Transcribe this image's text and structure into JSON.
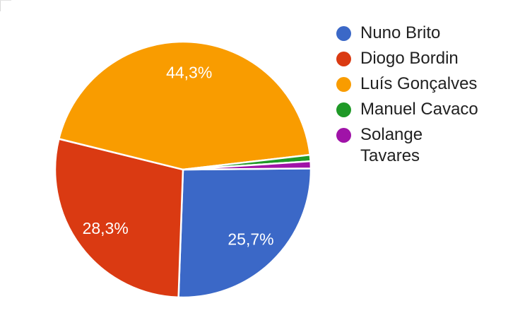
{
  "chart_data": {
    "type": "pie",
    "title": "",
    "legend_position": "right",
    "background": "#ffffff",
    "start_angle_deg": 89.5,
    "categories": [
      "Nuno Brito",
      "Diogo Bordin",
      "Luís Gonçalves",
      "Manuel Cavaco",
      "Solange Tavares"
    ],
    "values": [
      25.7,
      28.3,
      44.3,
      0.8,
      0.9
    ],
    "slice_labels": [
      "25,7%",
      "28,3%",
      "44,3%",
      "",
      ""
    ],
    "colors": [
      "#3B68C7",
      "#DA3A12",
      "#F99C00",
      "#1F9927",
      "#A013A8"
    ],
    "slice_border_color": "#ffffff",
    "label_color": "#ffffff",
    "legend_text_color": "#212121"
  }
}
